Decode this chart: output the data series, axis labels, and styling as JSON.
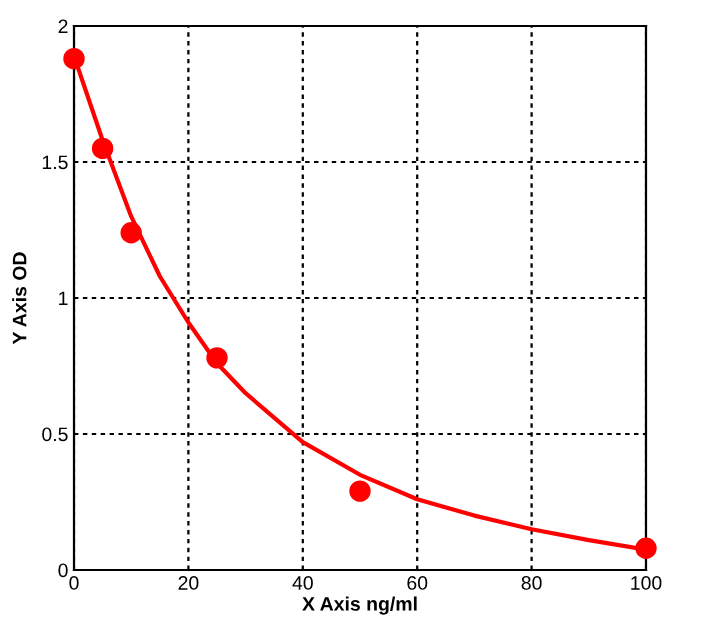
{
  "chart_data": {
    "type": "scatter",
    "xlabel": "X Axis ng/ml",
    "ylabel": "Y Axis OD",
    "series": [
      {
        "type": "scatter",
        "color": "#ff0000",
        "marker": "circle",
        "x": [
          0,
          5,
          10,
          25,
          50,
          100
        ],
        "values": [
          1.88,
          1.55,
          1.24,
          0.78,
          0.29,
          0.08
        ]
      },
      {
        "type": "line",
        "color": "#ff0000",
        "marker": "none",
        "line_style": "solid",
        "x": [
          0,
          5,
          10,
          15,
          20,
          25,
          30,
          40,
          50,
          60,
          70,
          80,
          90,
          100
        ],
        "values": [
          1.89,
          1.58,
          1.3,
          1.08,
          0.91,
          0.76,
          0.65,
          0.47,
          0.35,
          0.26,
          0.2,
          0.15,
          0.11,
          0.075
        ]
      }
    ],
    "xlim": [
      0,
      100
    ],
    "xticks": [
      0,
      20,
      40,
      60,
      80,
      100
    ],
    "ylim": [
      0,
      2
    ],
    "yticks": [
      0,
      0.5,
      1,
      1.5,
      2
    ],
    "grid": true
  }
}
